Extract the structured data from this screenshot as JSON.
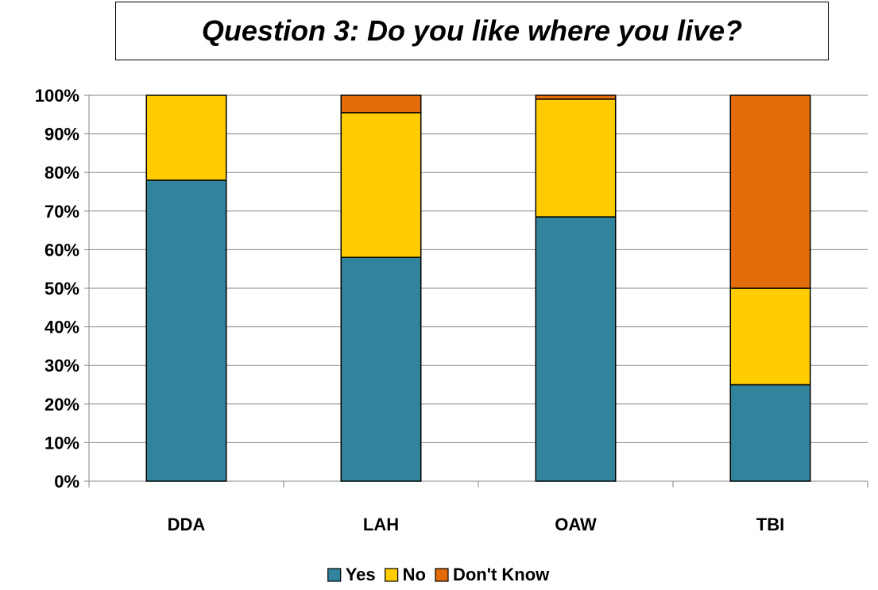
{
  "chart_data": {
    "type": "bar",
    "stacked": true,
    "title": "Question 3:  Do you like where you live?",
    "categories": [
      "DDA",
      "LAH",
      "OAW",
      "TBI"
    ],
    "series": [
      {
        "name": "Yes",
        "color": "#31849B",
        "values": [
          78,
          58,
          68.5,
          25
        ]
      },
      {
        "name": "No",
        "color": "#FFCC00",
        "values": [
          22,
          37.5,
          30.5,
          25
        ]
      },
      {
        "name": "Don't Know",
        "color": "#E36C0A",
        "values": [
          0,
          4.5,
          1,
          50
        ]
      }
    ],
    "ylim": [
      0,
      100
    ],
    "yticks": [
      "0%",
      "10%",
      "20%",
      "30%",
      "40%",
      "50%",
      "60%",
      "70%",
      "80%",
      "90%",
      "100%"
    ],
    "grid": true,
    "legend_position": "bottom"
  }
}
